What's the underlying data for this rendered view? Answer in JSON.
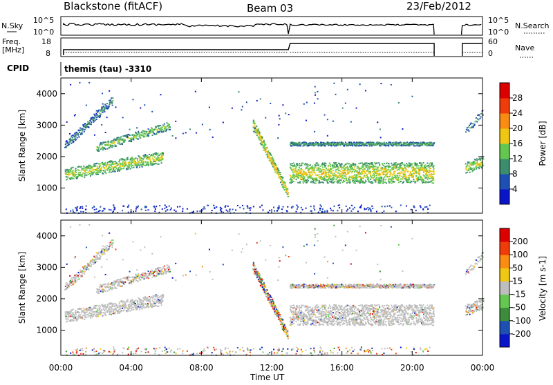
{
  "header": {
    "station": "Blackstone (fitACF)",
    "beam": "Beam 03",
    "date": "23/Feb/2012"
  },
  "sky_panel": {
    "left_label": "N.Sky",
    "right_label": "N.Search",
    "left_ticks": [
      "10^5",
      "10^0"
    ],
    "right_ticks": [
      "10^5",
      "10^0"
    ]
  },
  "freq_panel": {
    "left_label_line1": "Freq.",
    "left_label_line2": "[MHz]",
    "right_label": "Nave",
    "left_ticks": [
      "18",
      "8"
    ],
    "right_ticks": [
      "60",
      "0"
    ]
  },
  "cpid_panel": {
    "label": "CPID",
    "program": "themis (tau) -3310"
  },
  "chart_data": [
    {
      "type": "heatmap",
      "name": "power",
      "ylabel": "Slant Range [km]",
      "ylim": [
        200,
        4500
      ],
      "yticks": [
        "4000",
        "3000",
        "2000",
        "1000"
      ],
      "colorbar_label": "Power [dB]",
      "colorbar_ticks": [
        "28",
        "24",
        "20",
        "16",
        "12",
        "8",
        "4"
      ],
      "colorbar_range": [
        0,
        32
      ],
      "colors": [
        "#0a14c8",
        "#1e50b4",
        "#3c8c6e",
        "#64c850",
        "#f0c814",
        "#fa8c14",
        "#f03c0a",
        "#dc0000"
      ]
    },
    {
      "type": "heatmap",
      "name": "velocity",
      "ylabel": "Slant Range [km]",
      "ylim": [
        200,
        4500
      ],
      "yticks": [
        "4000",
        "3000",
        "2000",
        "1000"
      ],
      "colorbar_label": "Velocity [m s-1]",
      "colorbar_ticks": [
        "200",
        "100",
        "50",
        "15",
        "-15",
        "-50",
        "-100",
        "-200"
      ],
      "colors": [
        "#dc0000",
        "#f03c0a",
        "#fa8c14",
        "#f0c814",
        "#bebebe",
        "#64c850",
        "#3c8c3c",
        "#1e50b4",
        "#0a14c8"
      ],
      "ground_scatter_color": "#bebebe"
    }
  ],
  "time_axis": {
    "xlabel": "Time UT",
    "ticks": [
      "00:00",
      "04:00",
      "08:00",
      "12:00",
      "16:00",
      "20:00",
      "00:00"
    ],
    "range_hours": [
      0,
      24
    ]
  }
}
